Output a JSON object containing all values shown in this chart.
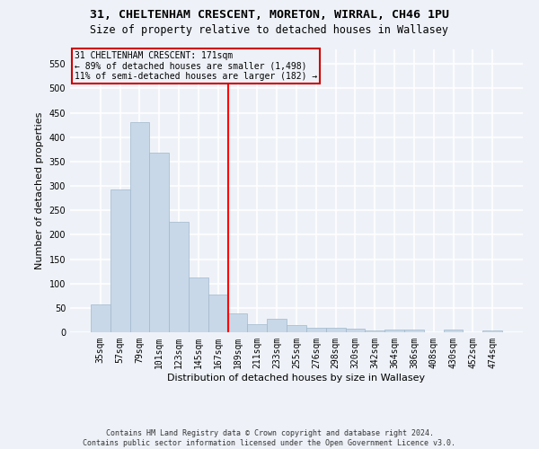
{
  "title_line1": "31, CHELTENHAM CRESCENT, MORETON, WIRRAL, CH46 1PU",
  "title_line2": "Size of property relative to detached houses in Wallasey",
  "xlabel": "Distribution of detached houses by size in Wallasey",
  "ylabel": "Number of detached properties",
  "bar_color": "#c8d8e8",
  "bar_edgecolor": "#a0b8cc",
  "categories": [
    "35sqm",
    "57sqm",
    "79sqm",
    "101sqm",
    "123sqm",
    "145sqm",
    "167sqm",
    "189sqm",
    "211sqm",
    "233sqm",
    "255sqm",
    "276sqm",
    "298sqm",
    "320sqm",
    "342sqm",
    "364sqm",
    "386sqm",
    "408sqm",
    "430sqm",
    "452sqm",
    "474sqm"
  ],
  "values": [
    57,
    293,
    430,
    368,
    226,
    113,
    77,
    38,
    17,
    27,
    14,
    10,
    10,
    8,
    4,
    5,
    5,
    0,
    5,
    0,
    4
  ],
  "ylim": [
    0,
    580
  ],
  "yticks": [
    0,
    50,
    100,
    150,
    200,
    250,
    300,
    350,
    400,
    450,
    500,
    550
  ],
  "property_line_x": 6.5,
  "annotation_box_text": "31 CHELTENHAM CRESCENT: 171sqm\n← 89% of detached houses are smaller (1,498)\n11% of semi-detached houses are larger (182) →",
  "annotation_box_color": "#cc0000",
  "footer_line1": "Contains HM Land Registry data © Crown copyright and database right 2024.",
  "footer_line2": "Contains public sector information licensed under the Open Government Licence v3.0.",
  "background_color": "#eef2f8",
  "grid_color": "#ffffff",
  "title_fontsize": 9.5,
  "subtitle_fontsize": 8.5,
  "axis_label_fontsize": 8,
  "tick_fontsize": 7,
  "footer_fontsize": 6
}
